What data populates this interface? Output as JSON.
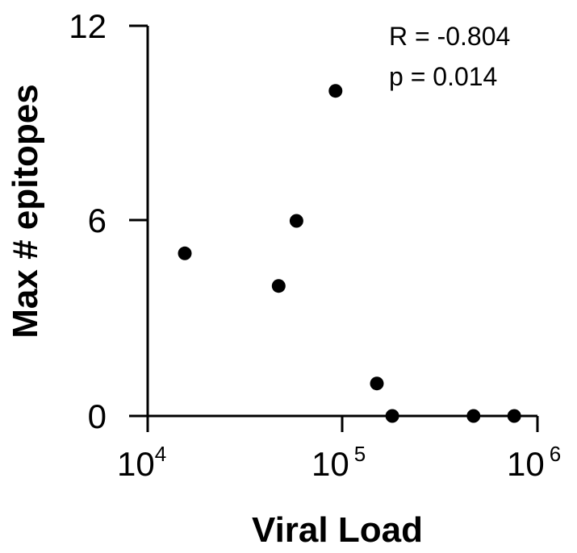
{
  "chart_data": {
    "type": "scatter",
    "xscale": "log",
    "xlabel": "Viral Load",
    "ylabel": "Max # epitopes",
    "xlim": [
      10000,
      1000000
    ],
    "ylim": [
      0,
      12
    ],
    "x_ticks": [
      {
        "base": "10",
        "exp": "4",
        "value": 10000
      },
      {
        "base": "10",
        "exp": "5",
        "value": 100000
      },
      {
        "base": "10",
        "exp": "6",
        "value": 1000000
      }
    ],
    "y_ticks": [
      {
        "label": "0",
        "value": 0
      },
      {
        "label": "6",
        "value": 6
      },
      {
        "label": "12",
        "value": 12
      }
    ],
    "points": [
      {
        "x": 15500,
        "y": 5
      },
      {
        "x": 47000,
        "y": 4
      },
      {
        "x": 58000,
        "y": 6
      },
      {
        "x": 92000,
        "y": 10
      },
      {
        "x": 150000,
        "y": 1
      },
      {
        "x": 180000,
        "y": 0
      },
      {
        "x": 470000,
        "y": 0
      },
      {
        "x": 760000,
        "y": 0
      }
    ],
    "annotations": {
      "r": "R = -0.804",
      "p": "p = 0.014"
    }
  }
}
